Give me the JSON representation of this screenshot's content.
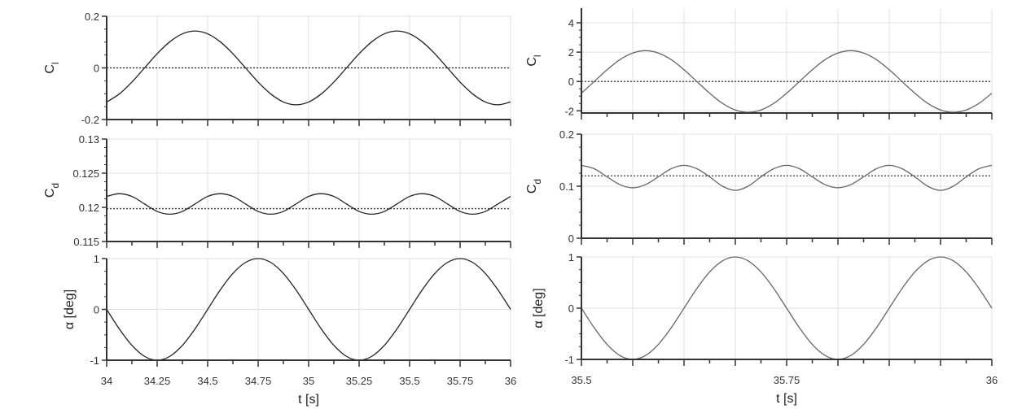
{
  "chart_data": [
    {
      "type": "line",
      "panel": "left-top",
      "ylabel": "C",
      "ylabel_sub": "l",
      "xlim": [
        34,
        36
      ],
      "ylim": [
        -0.2,
        0.2
      ],
      "yticks": [
        "0.2",
        "0",
        "-0.2"
      ],
      "ytick_values": [
        0.2,
        0,
        -0.2
      ],
      "xticks": [],
      "xtick_values": [
        34,
        34.25,
        34.5,
        34.75,
        35,
        35.25,
        35.5,
        35.75,
        36
      ],
      "reference_line": 0,
      "x_start": 34,
      "x_step": 0.0625,
      "values": [
        -0.132,
        -0.101,
        -0.055,
        0,
        0.055,
        0.101,
        0.132,
        0.143,
        0.132,
        0.101,
        0.055,
        0,
        -0.055,
        -0.101,
        -0.132,
        -0.143,
        -0.132,
        -0.101,
        -0.055,
        0,
        0.055,
        0.101,
        0.132,
        0.143,
        0.132,
        0.101,
        0.055,
        0,
        -0.055,
        -0.101,
        -0.132,
        -0.143,
        -0.132
      ],
      "line_color": "#222222",
      "grid": true
    },
    {
      "type": "line",
      "panel": "left-middle",
      "ylabel": "C",
      "ylabel_sub": "d",
      "xlim": [
        34,
        36
      ],
      "ylim": [
        0.115,
        0.13
      ],
      "yticks": [
        "0.13",
        "0.125",
        "0.12",
        "0.115"
      ],
      "ytick_values": [
        0.13,
        0.125,
        0.12,
        0.115
      ],
      "xticks": [],
      "xtick_values": [
        34,
        34.25,
        34.5,
        34.75,
        35,
        35.25,
        35.5,
        35.75,
        36
      ],
      "reference_line": 0.1198,
      "x_start": 34,
      "x_step": 0.0625,
      "values": [
        0.1216,
        0.122,
        0.1216,
        0.1205,
        0.1194,
        0.119,
        0.1194,
        0.1205,
        0.1216,
        0.122,
        0.1216,
        0.1205,
        0.1194,
        0.119,
        0.1194,
        0.1205,
        0.1216,
        0.122,
        0.1216,
        0.1205,
        0.1194,
        0.119,
        0.1194,
        0.1205,
        0.1216,
        0.122,
        0.1216,
        0.1205,
        0.1194,
        0.119,
        0.1194,
        0.1205,
        0.1216
      ],
      "line_color": "#222222",
      "grid": true
    },
    {
      "type": "line",
      "panel": "left-bottom",
      "ylabel": "α [deg]",
      "ylabel_sub": "",
      "xlabel": "t [s]",
      "xlim": [
        34,
        36
      ],
      "ylim": [
        -1,
        1
      ],
      "yticks": [
        "1",
        "0",
        "-1"
      ],
      "ytick_values": [
        1,
        0,
        -1
      ],
      "xticks": [
        "34",
        "34.25",
        "34.5",
        "34.75",
        "35",
        "35.25",
        "35.5",
        "35.75",
        "36"
      ],
      "xtick_values": [
        34,
        34.25,
        34.5,
        34.75,
        35,
        35.25,
        35.5,
        35.75,
        36
      ],
      "reference_line": null,
      "x_start": 34,
      "x_step": 0.0625,
      "values": [
        0,
        -0.383,
        -0.707,
        -0.924,
        -1,
        -0.924,
        -0.707,
        -0.383,
        0,
        0.383,
        0.707,
        0.924,
        1,
        0.924,
        0.707,
        0.383,
        0,
        -0.383,
        -0.707,
        -0.924,
        -1,
        -0.924,
        -0.707,
        -0.383,
        0,
        0.383,
        0.707,
        0.924,
        1,
        0.924,
        0.707,
        0.383,
        0
      ],
      "line_color": "#222222",
      "grid": true
    },
    {
      "type": "line",
      "panel": "right-top",
      "ylabel": "C",
      "ylabel_sub": "l",
      "xlim": [
        35.5,
        36
      ],
      "ylim": [
        -2.15,
        5
      ],
      "yticks": [
        "4",
        "2",
        "0",
        "-2"
      ],
      "ytick_values": [
        4,
        2,
        0,
        -2
      ],
      "xticks": [],
      "xtick_values": [
        35.5,
        35.5625,
        35.625,
        35.6875,
        35.75,
        35.8125,
        35.875,
        35.9375,
        36
      ],
      "reference_line": 0,
      "x_start": 35.5,
      "x_step": 0.015625,
      "values": [
        -0.8,
        0,
        0.8,
        1.49,
        1.94,
        2.1,
        1.94,
        1.49,
        0.8,
        0,
        -0.8,
        -1.49,
        -1.94,
        -2.1,
        -1.94,
        -1.49,
        -0.8,
        0,
        0.8,
        1.49,
        1.94,
        2.1,
        1.94,
        1.49,
        0.8,
        0,
        -0.8,
        -1.49,
        -1.94,
        -2.1,
        -1.94,
        -1.49,
        -0.8
      ],
      "line_color": "#666666",
      "grid": true
    },
    {
      "type": "line",
      "panel": "right-middle",
      "ylabel": "C",
      "ylabel_sub": "d",
      "xlim": [
        35.5,
        36
      ],
      "ylim": [
        0,
        0.2
      ],
      "yticks": [
        "0.2",
        "0.1",
        "0"
      ],
      "ytick_values": [
        0.2,
        0.1,
        0
      ],
      "xticks": [],
      "xtick_values": [
        35.5,
        35.5625,
        35.625,
        35.6875,
        35.75,
        35.8125,
        35.875,
        35.9375,
        36
      ],
      "reference_line": 0.12,
      "x_start": 35.5,
      "x_step": 0.015625,
      "values": [
        0.14,
        0.1336,
        0.118,
        0.103,
        0.097,
        0.103,
        0.118,
        0.1336,
        0.14,
        0.1336,
        0.118,
        0.1,
        0.092,
        0.1,
        0.118,
        0.1336,
        0.14,
        0.1336,
        0.118,
        0.103,
        0.097,
        0.103,
        0.118,
        0.1336,
        0.14,
        0.1336,
        0.118,
        0.1,
        0.092,
        0.1,
        0.118,
        0.1336,
        0.14
      ],
      "line_color": "#666666",
      "grid": true
    },
    {
      "type": "line",
      "panel": "right-bottom",
      "ylabel": "α [deg]",
      "ylabel_sub": "",
      "xlabel": "t [s]",
      "xlim": [
        35.5,
        36
      ],
      "ylim": [
        -1,
        1
      ],
      "yticks": [
        "1",
        "0",
        "-1"
      ],
      "ytick_values": [
        1,
        0,
        -1
      ],
      "xticks": [
        "35.5",
        "",
        "",
        "",
        "35.75",
        "",
        "",
        "",
        "36"
      ],
      "xtick_values": [
        35.5,
        35.5625,
        35.625,
        35.6875,
        35.75,
        35.8125,
        35.875,
        35.9375,
        36
      ],
      "reference_line": null,
      "x_start": 35.5,
      "x_step": 0.015625,
      "values": [
        0,
        -0.383,
        -0.707,
        -0.924,
        -1,
        -0.924,
        -0.707,
        -0.383,
        0,
        0.383,
        0.707,
        0.924,
        1,
        0.924,
        0.707,
        0.383,
        0,
        -0.383,
        -0.707,
        -0.924,
        -1,
        -0.924,
        -0.707,
        -0.383,
        0,
        0.383,
        0.707,
        0.924,
        1,
        0.924,
        0.707,
        0.383,
        0
      ],
      "line_color": "#666666",
      "grid": true
    }
  ]
}
